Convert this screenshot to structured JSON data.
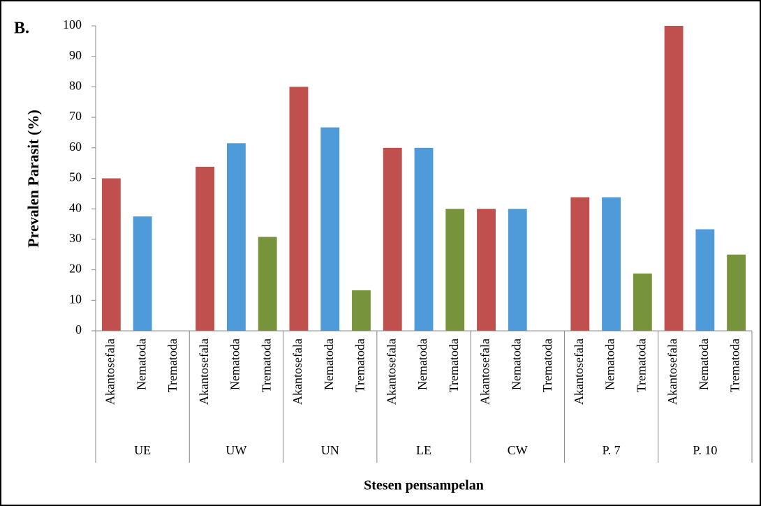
{
  "chart_data": {
    "type": "bar",
    "annotation": "B.",
    "xlabel": "Stesen pensampelan",
    "ylabel": "Prevalen Parasit (%)",
    "categories": [
      "UE",
      "UW",
      "UN",
      "LE",
      "CW",
      "P. 7",
      "P. 10"
    ],
    "series": [
      {
        "name": "Akantosefala",
        "color": "#c0504d",
        "values": [
          50,
          53.8,
          80,
          60,
          40,
          43.8,
          100
        ]
      },
      {
        "name": "Nematoda",
        "color": "#4f9bd9",
        "values": [
          37.5,
          61.5,
          66.7,
          60,
          40,
          43.8,
          33.3
        ]
      },
      {
        "name": "Trematoda",
        "color": "#77933c",
        "values": [
          0,
          30.8,
          13.3,
          40,
          0,
          18.8,
          25
        ]
      }
    ],
    "ylim": [
      0,
      100
    ],
    "yticks": [
      0,
      10,
      20,
      30,
      40,
      50,
      60,
      70,
      80,
      90,
      100
    ],
    "grid": false
  }
}
